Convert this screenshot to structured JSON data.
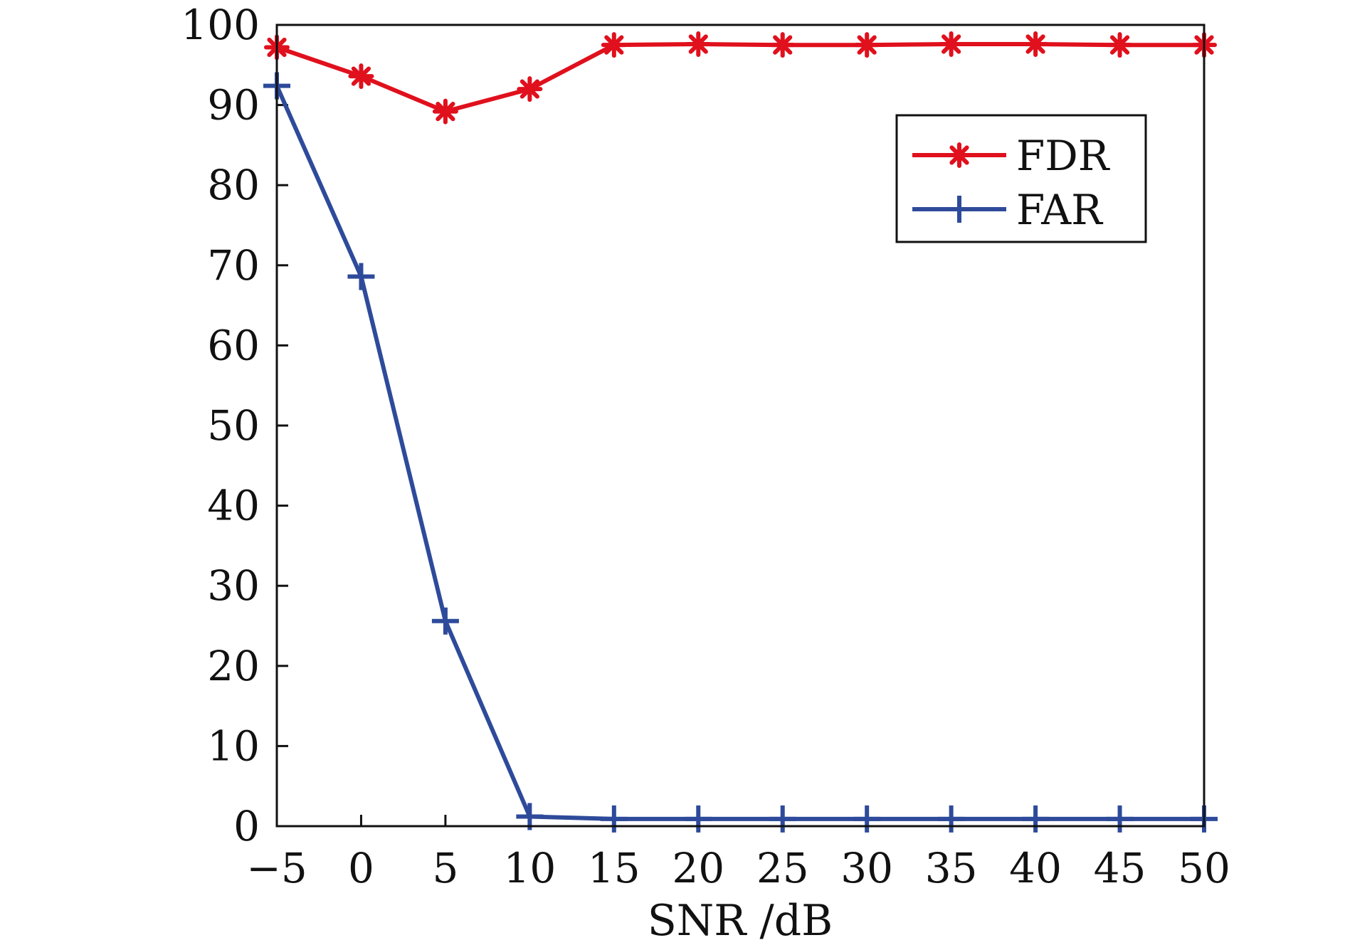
{
  "chart_data": {
    "type": "line",
    "xlabel": "SNR /dB",
    "ylabel": "",
    "x": [
      -5,
      0,
      5,
      10,
      15,
      20,
      25,
      30,
      35,
      40,
      45,
      50
    ],
    "xlim": [
      -5,
      50
    ],
    "ylim": [
      0,
      100
    ],
    "xticks": [
      -5,
      0,
      5,
      10,
      15,
      20,
      25,
      30,
      35,
      40,
      45,
      50
    ],
    "xtick_labels": [
      "−5",
      "0",
      "5",
      "10",
      "15",
      "20",
      "25",
      "30",
      "35",
      "40",
      "45",
      "50"
    ],
    "yticks": [
      0,
      10,
      20,
      30,
      40,
      50,
      60,
      70,
      80,
      90,
      100
    ],
    "ytick_labels": [
      "0",
      "10",
      "20",
      "30",
      "40",
      "50",
      "60",
      "70",
      "80",
      "90",
      "100"
    ],
    "grid": false,
    "legend_position": "top-right",
    "series": [
      {
        "name": "FDR",
        "color": "#e0101d",
        "marker": "asterisk",
        "values": [
          97.2,
          93.6,
          89.2,
          92.0,
          97.5,
          97.6,
          97.5,
          97.5,
          97.6,
          97.6,
          97.5,
          97.5
        ]
      },
      {
        "name": "FAR",
        "color": "#2e4a9a",
        "marker": "plus",
        "values": [
          92.4,
          68.6,
          25.6,
          1.2,
          0.9,
          0.9,
          0.9,
          0.9,
          0.9,
          0.9,
          0.9,
          0.9
        ]
      }
    ]
  }
}
